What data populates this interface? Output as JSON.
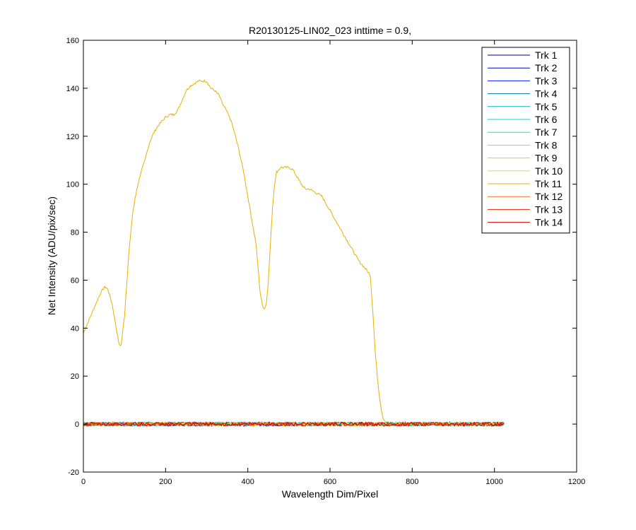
{
  "chart_data": {
    "type": "line",
    "title": "R20130125-LIN02_023 inttime = 0.9,",
    "xlabel": "Wavelength Dim/Pixel",
    "ylabel": "Net Intensity (ADU/pix/sec)",
    "xlim": [
      0,
      1200
    ],
    "ylim": [
      -20,
      160
    ],
    "xticks": [
      0,
      200,
      400,
      600,
      800,
      1000,
      1200
    ],
    "yticks": [
      -20,
      0,
      20,
      40,
      60,
      80,
      100,
      120,
      140,
      160
    ],
    "grid": false,
    "legend_position": "top-right",
    "baseline_x_range": [
      0,
      1023
    ],
    "series": [
      {
        "name": "Trk 1",
        "color": "#00008f",
        "baseline": true
      },
      {
        "name": "Trk 2",
        "color": "#0000cf",
        "baseline": true
      },
      {
        "name": "Trk 3",
        "color": "#0020ff",
        "baseline": true
      },
      {
        "name": "Trk 4",
        "color": "#0070bf",
        "baseline": true
      },
      {
        "name": "Trk 5",
        "color": "#00b0c0",
        "baseline": true
      },
      {
        "name": "Trk 6",
        "color": "#00d0e0",
        "baseline": true
      },
      {
        "name": "Trk 7",
        "color": "#20e0d0",
        "baseline": true
      },
      {
        "name": "Trk 8",
        "color": "#80e080",
        "baseline": true
      },
      {
        "name": "Trk 9",
        "color": "#b0e040",
        "baseline": true
      },
      {
        "name": "Trk 10",
        "color": "#e0e020",
        "baseline": true
      },
      {
        "name": "Trk 11",
        "color": "#e8b000",
        "baseline": false,
        "points": [
          [
            0,
            38
          ],
          [
            10,
            42
          ],
          [
            20,
            46
          ],
          [
            30,
            50
          ],
          [
            40,
            54
          ],
          [
            50,
            57
          ],
          [
            55,
            57
          ],
          [
            60,
            56
          ],
          [
            70,
            50
          ],
          [
            80,
            40
          ],
          [
            87,
            33
          ],
          [
            92,
            33
          ],
          [
            100,
            45
          ],
          [
            110,
            70
          ],
          [
            120,
            88
          ],
          [
            130,
            98
          ],
          [
            140,
            105
          ],
          [
            150,
            110
          ],
          [
            160,
            117
          ],
          [
            170,
            121
          ],
          [
            180,
            124
          ],
          [
            190,
            126
          ],
          [
            200,
            128
          ],
          [
            210,
            129
          ],
          [
            220,
            129
          ],
          [
            230,
            131
          ],
          [
            240,
            135
          ],
          [
            250,
            139
          ],
          [
            260,
            141
          ],
          [
            270,
            142
          ],
          [
            280,
            143
          ],
          [
            290,
            143
          ],
          [
            300,
            143
          ],
          [
            310,
            140
          ],
          [
            320,
            139
          ],
          [
            330,
            137
          ],
          [
            340,
            133
          ],
          [
            350,
            130
          ],
          [
            360,
            126
          ],
          [
            370,
            120
          ],
          [
            380,
            113
          ],
          [
            390,
            105
          ],
          [
            400,
            95
          ],
          [
            410,
            85
          ],
          [
            420,
            75
          ],
          [
            425,
            65
          ],
          [
            430,
            55
          ],
          [
            435,
            50
          ],
          [
            440,
            48
          ],
          [
            445,
            50
          ],
          [
            450,
            60
          ],
          [
            455,
            75
          ],
          [
            460,
            90
          ],
          [
            465,
            100
          ],
          [
            470,
            105
          ],
          [
            480,
            107
          ],
          [
            490,
            107
          ],
          [
            500,
            107
          ],
          [
            510,
            106
          ],
          [
            520,
            103
          ],
          [
            530,
            100
          ],
          [
            540,
            98
          ],
          [
            550,
            98
          ],
          [
            560,
            97
          ],
          [
            570,
            96
          ],
          [
            580,
            95
          ],
          [
            590,
            92
          ],
          [
            600,
            89
          ],
          [
            610,
            86
          ],
          [
            620,
            83
          ],
          [
            630,
            80
          ],
          [
            640,
            77
          ],
          [
            650,
            74
          ],
          [
            660,
            71
          ],
          [
            670,
            68
          ],
          [
            680,
            66
          ],
          [
            690,
            64
          ],
          [
            698,
            62
          ],
          [
            700,
            57
          ],
          [
            705,
            45
          ],
          [
            710,
            30
          ],
          [
            715,
            20
          ],
          [
            720,
            12
          ],
          [
            725,
            6
          ],
          [
            730,
            2
          ],
          [
            735,
            0.8
          ],
          [
            745,
            0.3
          ],
          [
            760,
            0.2
          ],
          [
            800,
            0.2
          ],
          [
            900,
            0.1
          ],
          [
            1000,
            0.1
          ],
          [
            1023,
            0.1
          ]
        ]
      },
      {
        "name": "Trk 12",
        "color": "#ff7020",
        "baseline": true
      },
      {
        "name": "Trk 13",
        "color": "#e82000",
        "baseline": true
      },
      {
        "name": "Trk 14",
        "color": "#d00000",
        "baseline": true
      }
    ]
  }
}
